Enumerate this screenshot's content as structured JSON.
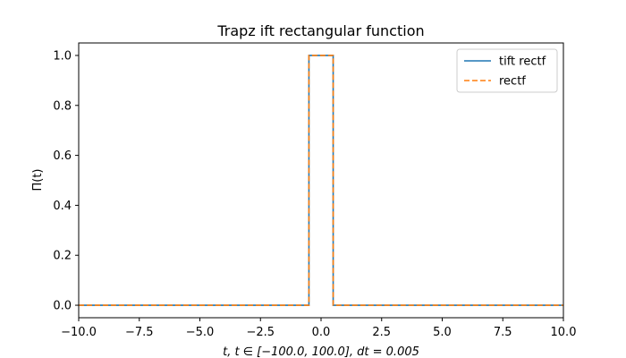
{
  "chart_data": {
    "type": "line",
    "title": "Trapz ift rectangular function",
    "xlabel": "t, t ∈ [−100.0, 100.0], dt = 0.005",
    "ylabel": "Π(t)",
    "xlim": [
      -10.0,
      10.0
    ],
    "ylim": [
      -0.05,
      1.05
    ],
    "xticks": [
      -10.0,
      -7.5,
      -5.0,
      -2.5,
      0.0,
      2.5,
      5.0,
      7.5,
      10.0
    ],
    "xtick_labels": [
      "−10.0",
      "−7.5",
      "−5.0",
      "−2.5",
      "0.0",
      "2.5",
      "5.0",
      "7.5",
      "10.0"
    ],
    "yticks": [
      0.0,
      0.2,
      0.4,
      0.6,
      0.8,
      1.0
    ],
    "ytick_labels": [
      "0.0",
      "0.2",
      "0.4",
      "0.6",
      "0.8",
      "1.0"
    ],
    "grid": false,
    "legend_position": "top-right",
    "series": [
      {
        "name": "tift rectf",
        "color": "#1f77b4",
        "style": "solid",
        "x": [
          -10.0,
          -0.5,
          -0.5,
          0.5,
          0.5,
          10.0
        ],
        "y": [
          0.0,
          0.0,
          1.0,
          1.0,
          0.0,
          0.0
        ]
      },
      {
        "name": "rectf",
        "color": "#ff7f0e",
        "style": "dashed",
        "x": [
          -10.0,
          -0.5,
          -0.5,
          0.5,
          0.5,
          10.0
        ],
        "y": [
          0.0,
          0.0,
          1.0,
          1.0,
          0.0,
          0.0
        ]
      }
    ]
  }
}
